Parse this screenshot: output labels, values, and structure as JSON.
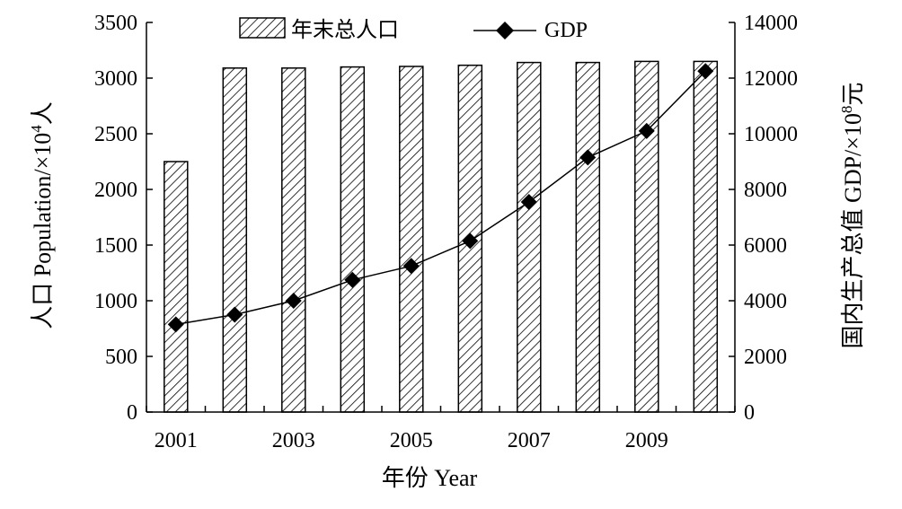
{
  "chart_data": {
    "type": "bar",
    "title": "",
    "categories": [
      "2001",
      "2002",
      "2003",
      "2004",
      "2005",
      "2006",
      "2007",
      "2008",
      "2009",
      "2010"
    ],
    "x_tick_labels": [
      "2001",
      "2003",
      "2005",
      "2007",
      "2009"
    ],
    "xlabel": "年份 Year",
    "ylabel_left": "人口 Population/×10",
    "ylabel_left_sup": "4",
    "ylabel_left_tail": "人",
    "ylabel_right": "国内生产总值 GDP/×10",
    "ylabel_right_sup": "8",
    "ylabel_right_tail": "元",
    "ylim_left": [
      0,
      3500
    ],
    "ylim_right": [
      0,
      14000
    ],
    "left_ticks": [
      0,
      500,
      1000,
      1500,
      2000,
      2500,
      3000,
      3500
    ],
    "right_ticks": [
      0,
      2000,
      4000,
      6000,
      8000,
      10000,
      12000,
      14000
    ],
    "legend_placement": "top-center",
    "grid": false,
    "series": [
      {
        "name": "年末总人口",
        "type": "bar",
        "axis": "left",
        "pattern": "diagonal-hatch",
        "values": [
          2250,
          3090,
          3090,
          3100,
          3105,
          3115,
          3140,
          3140,
          3150,
          3150
        ]
      },
      {
        "name": "GDP",
        "type": "line",
        "axis": "right",
        "marker": "diamond",
        "values": [
          3150,
          3500,
          4000,
          4750,
          5250,
          6150,
          7550,
          9150,
          10100,
          12250
        ]
      }
    ]
  }
}
